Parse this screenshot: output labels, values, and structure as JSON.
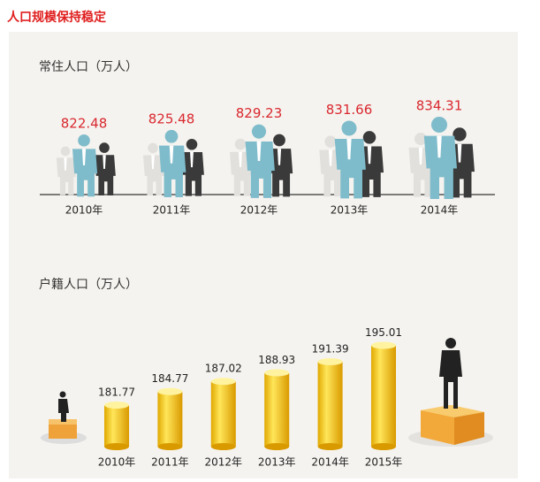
{
  "header": {
    "title": "人口规模保持稳定"
  },
  "chart_data": [
    {
      "type": "pictograph",
      "title": "常住人口（万人）",
      "categories": [
        "2010年",
        "2011年",
        "2012年",
        "2013年",
        "2014年"
      ],
      "values": [
        822.48,
        825.48,
        829.23,
        831.66,
        834.31
      ],
      "color": "#7fbccb",
      "label_color": "#d9282f"
    },
    {
      "type": "bar",
      "title": "户籍人口（万人）",
      "categories": [
        "2010年",
        "2011年",
        "2012年",
        "2013年",
        "2014年",
        "2015年"
      ],
      "values": [
        181.77,
        184.77,
        187.02,
        188.93,
        191.39,
        195.01
      ],
      "color": "#f6cf1b"
    }
  ]
}
